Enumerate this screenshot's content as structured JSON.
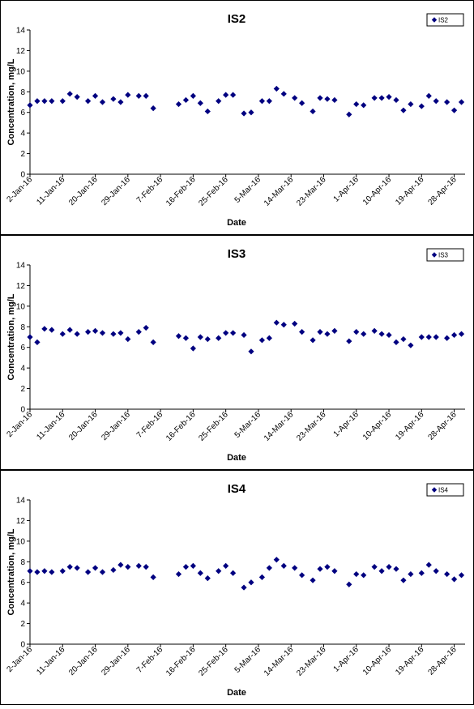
{
  "chart_data": [
    {
      "type": "scatter",
      "title": "IS2",
      "xlabel": "Date",
      "ylabel": "Concentration, mg/L",
      "ylim": [
        0,
        14
      ],
      "yticks": [
        0,
        2,
        4,
        6,
        8,
        10,
        12,
        14
      ],
      "xlim": [
        "2016-01-02",
        "2016-05-01"
      ],
      "xtick_labels": [
        "2-Jan-16",
        "11-Jan-16",
        "20-Jan-16",
        "29-Jan-16",
        "7-Feb-16",
        "16-Feb-16",
        "25-Feb-16",
        "5-Mar-16",
        "14-Mar-16",
        "23-Mar-16",
        "1-Apr-16",
        "10-Apr-16",
        "19-Apr-16",
        "28-Apr-16"
      ],
      "legend_position": "top-right",
      "grid": false,
      "marker_color": "#000080",
      "series": [
        {
          "name": "IS2",
          "x": [
            "2016-01-02",
            "2016-01-04",
            "2016-01-06",
            "2016-01-08",
            "2016-01-11",
            "2016-01-13",
            "2016-01-15",
            "2016-01-18",
            "2016-01-20",
            "2016-01-22",
            "2016-01-25",
            "2016-01-27",
            "2016-01-29",
            "2016-02-01",
            "2016-02-03",
            "2016-02-05",
            "2016-02-12",
            "2016-02-14",
            "2016-02-16",
            "2016-02-18",
            "2016-02-20",
            "2016-02-23",
            "2016-02-25",
            "2016-02-27",
            "2016-03-01",
            "2016-03-03",
            "2016-03-06",
            "2016-03-08",
            "2016-03-10",
            "2016-03-12",
            "2016-03-15",
            "2016-03-17",
            "2016-03-20",
            "2016-03-22",
            "2016-03-24",
            "2016-03-26",
            "2016-03-30",
            "2016-04-01",
            "2016-04-03",
            "2016-04-06",
            "2016-04-08",
            "2016-04-10",
            "2016-04-12",
            "2016-04-14",
            "2016-04-16",
            "2016-04-19",
            "2016-04-21",
            "2016-04-23",
            "2016-04-26",
            "2016-04-28",
            "2016-04-30"
          ],
          "y": [
            6.7,
            7.1,
            7.1,
            7.1,
            7.1,
            7.8,
            7.5,
            7.1,
            7.6,
            7.0,
            7.3,
            7.0,
            7.7,
            7.6,
            7.6,
            6.4,
            6.8,
            7.2,
            7.6,
            6.9,
            6.1,
            7.1,
            7.7,
            7.7,
            5.9,
            6.0,
            7.1,
            7.1,
            8.3,
            7.8,
            7.4,
            6.9,
            6.1,
            7.4,
            7.3,
            7.2,
            5.8,
            6.8,
            6.7,
            7.4,
            7.4,
            7.5,
            7.2,
            6.2,
            6.8,
            6.6,
            7.6,
            7.1,
            7.0,
            6.2,
            7.0
          ]
        }
      ]
    },
    {
      "type": "scatter",
      "title": "IS3",
      "xlabel": "Date",
      "ylabel": "Concentration, mg/L",
      "ylim": [
        0,
        14
      ],
      "yticks": [
        0,
        2,
        4,
        6,
        8,
        10,
        12,
        14
      ],
      "xlim": [
        "2016-01-02",
        "2016-05-01"
      ],
      "xtick_labels": [
        "2-Jan-16",
        "11-Jan-16",
        "20-Jan-16",
        "29-Jan-16",
        "7-Feb-16",
        "16-Feb-16",
        "25-Feb-16",
        "5-Mar-16",
        "14-Mar-16",
        "23-Mar-16",
        "1-Apr-16",
        "10-Apr-16",
        "19-Apr-16",
        "28-Apr-16"
      ],
      "legend_position": "top-right",
      "grid": false,
      "marker_color": "#000080",
      "series": [
        {
          "name": "IS3",
          "x": [
            "2016-01-02",
            "2016-01-04",
            "2016-01-06",
            "2016-01-08",
            "2016-01-11",
            "2016-01-13",
            "2016-01-15",
            "2016-01-18",
            "2016-01-20",
            "2016-01-22",
            "2016-01-25",
            "2016-01-27",
            "2016-01-29",
            "2016-02-01",
            "2016-02-03",
            "2016-02-05",
            "2016-02-12",
            "2016-02-14",
            "2016-02-16",
            "2016-02-18",
            "2016-02-20",
            "2016-02-23",
            "2016-02-25",
            "2016-02-27",
            "2016-03-01",
            "2016-03-03",
            "2016-03-06",
            "2016-03-08",
            "2016-03-10",
            "2016-03-12",
            "2016-03-15",
            "2016-03-17",
            "2016-03-20",
            "2016-03-22",
            "2016-03-24",
            "2016-03-26",
            "2016-03-30",
            "2016-04-01",
            "2016-04-03",
            "2016-04-06",
            "2016-04-08",
            "2016-04-10",
            "2016-04-12",
            "2016-04-14",
            "2016-04-16",
            "2016-04-19",
            "2016-04-21",
            "2016-04-23",
            "2016-04-26",
            "2016-04-28",
            "2016-04-30"
          ],
          "y": [
            7.0,
            6.5,
            7.8,
            7.7,
            7.3,
            7.7,
            7.3,
            7.5,
            7.6,
            7.4,
            7.3,
            7.4,
            6.8,
            7.5,
            7.9,
            6.5,
            7.1,
            6.9,
            5.9,
            7.0,
            6.8,
            6.9,
            7.4,
            7.4,
            7.2,
            5.6,
            6.7,
            6.9,
            8.4,
            8.2,
            8.3,
            7.5,
            6.7,
            7.5,
            7.3,
            7.6,
            6.6,
            7.5,
            7.3,
            7.6,
            7.3,
            7.2,
            6.5,
            6.8,
            6.2,
            7.0,
            7.0,
            7.0,
            6.9,
            7.2,
            7.3
          ]
        }
      ]
    },
    {
      "type": "scatter",
      "title": "IS4",
      "xlabel": "Date",
      "ylabel": "Concentration, mg/L",
      "ylim": [
        0,
        14
      ],
      "yticks": [
        0,
        2,
        4,
        6,
        8,
        10,
        12,
        14
      ],
      "xlim": [
        "2016-01-02",
        "2016-05-01"
      ],
      "xtick_labels": [
        "2-Jan-16",
        "11-Jan-16",
        "20-Jan-16",
        "29-Jan-16",
        "7-Feb-16",
        "16-Feb-16",
        "25-Feb-16",
        "5-Mar-16",
        "14-Mar-16",
        "23-Mar-16",
        "1-Apr-16",
        "10-Apr-16",
        "19-Apr-16",
        "28-Apr-16"
      ],
      "legend_position": "top-right",
      "grid": false,
      "marker_color": "#000080",
      "series": [
        {
          "name": "IS4",
          "x": [
            "2016-01-02",
            "2016-01-04",
            "2016-01-06",
            "2016-01-08",
            "2016-01-11",
            "2016-01-13",
            "2016-01-15",
            "2016-01-18",
            "2016-01-20",
            "2016-01-22",
            "2016-01-25",
            "2016-01-27",
            "2016-01-29",
            "2016-02-01",
            "2016-02-03",
            "2016-02-05",
            "2016-02-12",
            "2016-02-14",
            "2016-02-16",
            "2016-02-18",
            "2016-02-20",
            "2016-02-23",
            "2016-02-25",
            "2016-02-27",
            "2016-03-01",
            "2016-03-03",
            "2016-03-06",
            "2016-03-08",
            "2016-03-10",
            "2016-03-12",
            "2016-03-15",
            "2016-03-17",
            "2016-03-20",
            "2016-03-22",
            "2016-03-24",
            "2016-03-26",
            "2016-03-30",
            "2016-04-01",
            "2016-04-03",
            "2016-04-06",
            "2016-04-08",
            "2016-04-10",
            "2016-04-12",
            "2016-04-14",
            "2016-04-16",
            "2016-04-19",
            "2016-04-21",
            "2016-04-23",
            "2016-04-26",
            "2016-04-28",
            "2016-04-30"
          ],
          "y": [
            7.1,
            7.0,
            7.1,
            7.0,
            7.1,
            7.5,
            7.4,
            7.0,
            7.4,
            7.0,
            7.2,
            7.7,
            7.5,
            7.6,
            7.5,
            6.5,
            6.8,
            7.5,
            7.6,
            6.9,
            6.4,
            7.1,
            7.6,
            6.9,
            5.5,
            6.0,
            6.5,
            7.4,
            8.2,
            7.6,
            7.4,
            6.7,
            6.2,
            7.3,
            7.5,
            7.1,
            5.8,
            6.8,
            6.7,
            7.5,
            7.1,
            7.5,
            7.3,
            6.2,
            6.8,
            6.9,
            7.7,
            7.1,
            6.8,
            6.3,
            6.7
          ]
        }
      ]
    }
  ]
}
